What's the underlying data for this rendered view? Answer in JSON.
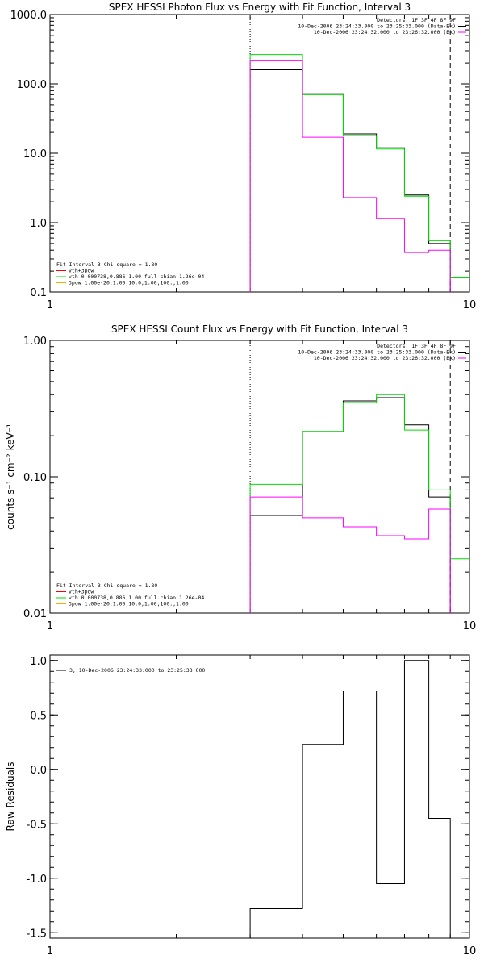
{
  "chart_data": [
    {
      "type": "line",
      "title": "SPEX HESSI Photon Flux vs Energy with Fit Function, Interval 3",
      "ylabel": "",
      "xscale": "log",
      "yscale": "log",
      "xlim": [
        1,
        10
      ],
      "ylim": [
        0.1,
        1000
      ],
      "xticks": [
        "1",
        "10"
      ],
      "yticks": [
        "0.1",
        "1.0",
        "10.0",
        "100.0",
        "1000.0"
      ],
      "vlines": [
        {
          "x": 3.0,
          "style": "dotted"
        },
        {
          "x": 9.0,
          "style": "dashed"
        }
      ],
      "edges": [
        3.0,
        4.0,
        5.0,
        6.0,
        7.0,
        8.0,
        9.0,
        10.0
      ],
      "series": [
        {
          "color": "#000000",
          "values": [
            160,
            72,
            19,
            12,
            2.5,
            0.5,
            null
          ]
        },
        {
          "color": "#00dd00",
          "values": [
            265,
            70,
            18,
            11.5,
            2.4,
            0.55,
            0.16
          ]
        },
        {
          "color": "#ff00ff",
          "values": [
            215,
            17,
            2.3,
            1.15,
            0.37,
            0.4,
            null
          ]
        }
      ],
      "legend_top": {
        "lines": [
          {
            "text": "Detectors: 1F 3F 4F 8F 9F",
            "color": ""
          },
          {
            "text": "10-Dec-2006 23:24:33.000 to 23:25:33.000 (Data-Bk)",
            "color": "#000000"
          },
          {
            "text": "10-Dec-2006 23:24:32.000 to 23:26:32.000 (Bk)",
            "color": "#ff00ff"
          }
        ]
      },
      "legend_bottom": {
        "header": "Fit Interval 3   Chi-square = 1.80",
        "entries": [
          {
            "text": "vth+3pow",
            "color": "#ff0000"
          },
          {
            "text": "vth 0.000738,0.886,1.00  full chian 1.26e-04",
            "color": "#00dd00"
          },
          {
            "text": "3pow 1.00e-20,1.00,10.0,1.00,100.,1.00",
            "color": "#ffaa00"
          }
        ]
      }
    },
    {
      "type": "line",
      "title": "SPEX HESSI Count Flux vs Energy with Fit Function, Interval 3",
      "ylabel": "counts s⁻¹ cm⁻² keV⁻¹",
      "xscale": "log",
      "yscale": "log",
      "xlim": [
        1,
        10
      ],
      "ylim": [
        0.01,
        1.0
      ],
      "xticks": [
        "1",
        "10"
      ],
      "yticks": [
        "0.01",
        "0.10",
        "1.00"
      ],
      "vlines": [
        {
          "x": 3.0,
          "style": "dotted"
        },
        {
          "x": 9.0,
          "style": "dashed"
        }
      ],
      "edges": [
        3.0,
        4.0,
        5.0,
        6.0,
        7.0,
        8.0,
        9.0,
        10.0
      ],
      "series": [
        {
          "color": "#000000",
          "values": [
            0.052,
            0.215,
            0.36,
            0.38,
            0.24,
            0.071,
            null
          ]
        },
        {
          "color": "#00dd00",
          "values": [
            0.088,
            0.215,
            0.35,
            0.4,
            0.22,
            0.08,
            0.025
          ]
        },
        {
          "color": "#ff00ff",
          "values": [
            0.071,
            0.05,
            0.043,
            0.037,
            0.035,
            0.058,
            null
          ]
        }
      ],
      "legend_top": {
        "lines": [
          {
            "text": "Detectors: 1F 3F 4F 8F 9F",
            "color": ""
          },
          {
            "text": "10-Dec-2006 23:24:33.000 to 23:25:33.000 (Data-Bk)",
            "color": "#000000"
          },
          {
            "text": "10-Dec-2006 23:24:32.000 to 23:26:32.000 (Bk)",
            "color": "#ff00ff"
          }
        ]
      },
      "legend_bottom": {
        "header": "Fit Interval 3   Chi-square = 1.80",
        "entries": [
          {
            "text": "vth+3pow",
            "color": "#ff0000"
          },
          {
            "text": "vth 0.000738,0.886,1.00  full chian 1.26e-04",
            "color": "#00dd00"
          },
          {
            "text": "3pow 1.00e-20,1.00,10.0,1.00,100.,1.00",
            "color": "#ffaa00"
          }
        ]
      }
    },
    {
      "type": "line",
      "title": "",
      "ylabel": "Raw Residuals",
      "xscale": "log",
      "yscale": "linear",
      "xlim": [
        1,
        10
      ],
      "ylim": [
        -1.55,
        1.05
      ],
      "xticks": [
        "1",
        "10"
      ],
      "yticks": [
        "1.0",
        "0.5",
        "0.0",
        "-0.5",
        "-1.0",
        "-1.5"
      ],
      "ytick_values": [
        1.0,
        0.5,
        0.0,
        -0.5,
        -1.0,
        -1.5
      ],
      "edges": [
        3.0,
        4.0,
        5.0,
        6.0,
        7.0,
        8.0,
        9.0
      ],
      "series": [
        {
          "color": "#000000",
          "values": [
            -1.28,
            0.23,
            0.72,
            -1.05,
            1.0,
            -0.45
          ]
        }
      ],
      "legend_top": {
        "lines": [
          {
            "text": "3, 10-Dec-2006 23:24:33.000 to 23:25:33.000",
            "color": "#000000"
          }
        ]
      }
    }
  ]
}
